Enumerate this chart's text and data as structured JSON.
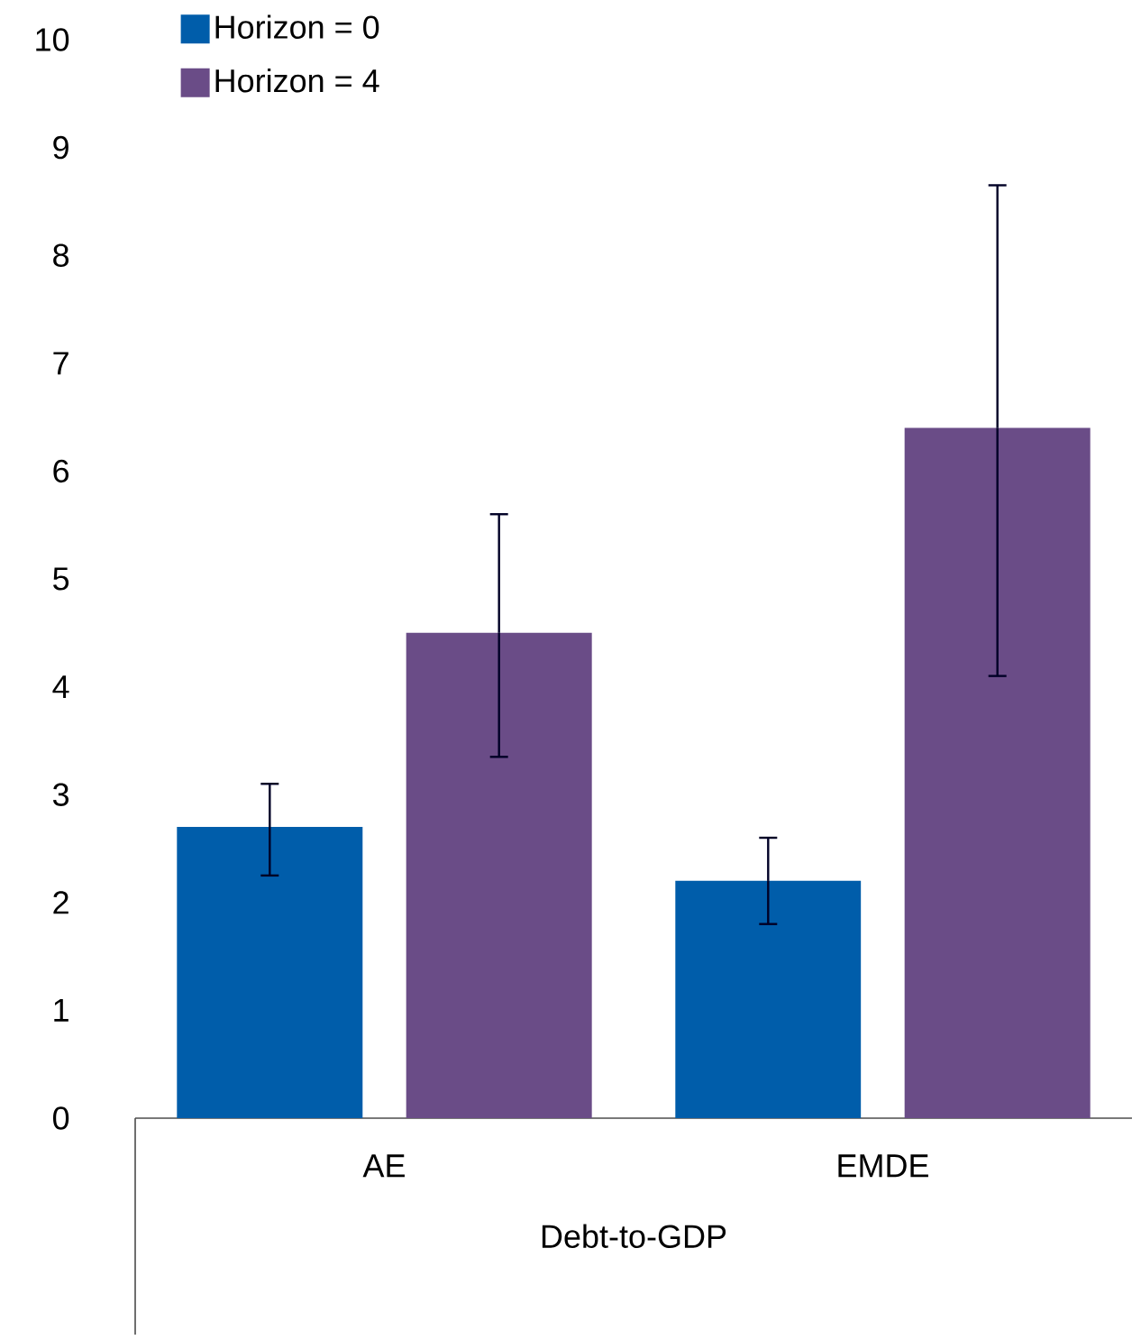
{
  "chart_data": {
    "type": "bar",
    "xlabel": "Debt-to-GDP",
    "categories": [
      "AE",
      "EMDE"
    ],
    "series": [
      {
        "name": "Horizon = 0",
        "color": "#005daa",
        "values": [
          2.7,
          2.2
        ],
        "errors": [
          [
            2.25,
            3.1
          ],
          [
            1.8,
            2.6
          ]
        ]
      },
      {
        "name": "Horizon = 4",
        "color": "#6a4c87",
        "values": [
          4.5,
          6.4
        ],
        "errors": [
          [
            3.35,
            5.6
          ],
          [
            4.1,
            8.65
          ]
        ]
      }
    ],
    "ylim": [
      0,
      10
    ],
    "yticks": [
      0,
      1,
      2,
      3,
      4,
      5,
      6,
      7,
      8,
      9,
      10
    ],
    "legend": "top left"
  }
}
